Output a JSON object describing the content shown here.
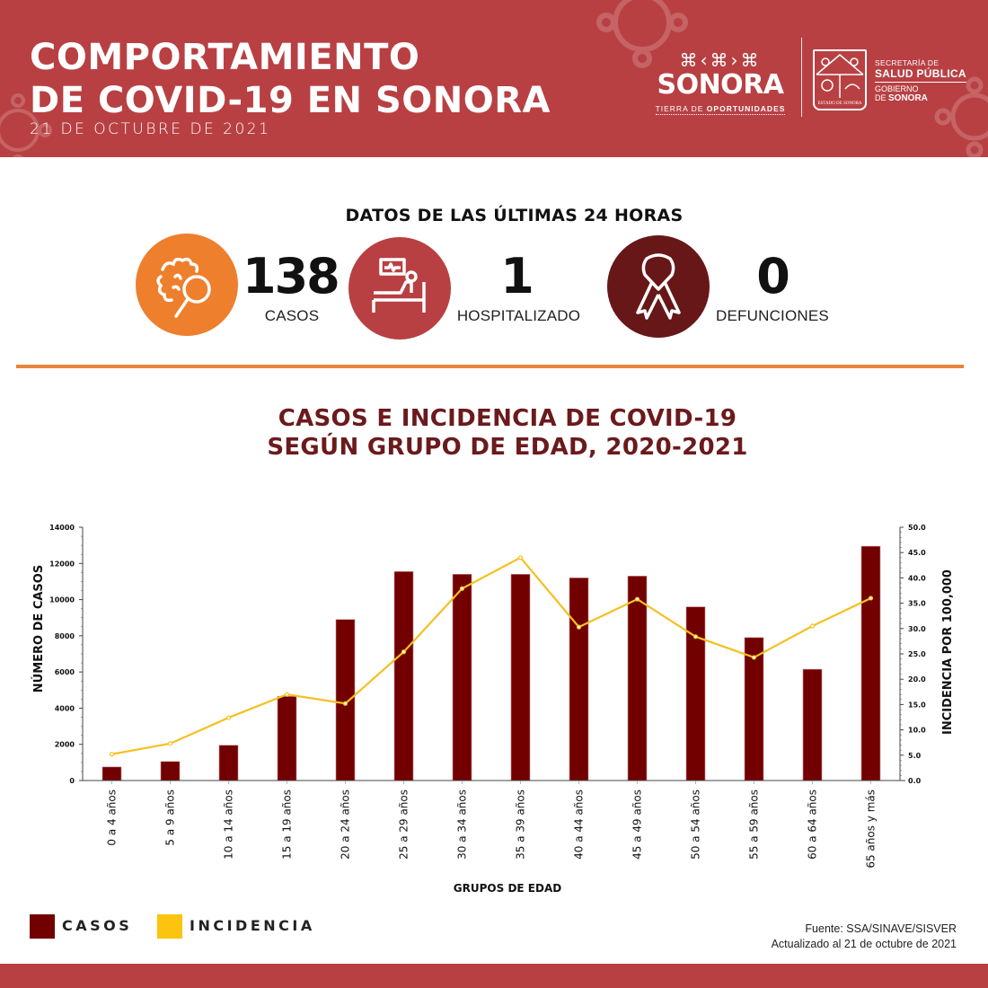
{
  "header": {
    "title_line1": "COMPORTAMIENTO",
    "title_line2": "DE COVID-19 EN SONORA",
    "date": "21 DE OCTUBRE DE 2021",
    "logo_sonora": {
      "pattern": "⌘‹⌘›⌘",
      "word": "SONORA",
      "tagline_prefix": "TIERRA DE ",
      "tagline_bold": "OPORTUNIDADES"
    },
    "coat_of_arms_label": "ESTADO DE SONORA",
    "ssp": {
      "line1": "SECRETARÍA DE",
      "line2": "SALUD PÚBLICA",
      "line3": "GOBIERNO",
      "line4_prefix": "DE ",
      "line4_bold": "SONORA"
    },
    "bg_color": "#b84043"
  },
  "stats": {
    "title": "DATOS DE LAS ÚLTIMAS 24 HORAS",
    "items": [
      {
        "icon": "virus-magnifier-icon",
        "value": "138",
        "label": "CASOS",
        "color": "#ee7f2d"
      },
      {
        "icon": "hospital-bed-icon",
        "value": "1",
        "label": "HOSPITALIZADO",
        "color": "#b84043"
      },
      {
        "icon": "ribbon-icon",
        "value": "0",
        "label": "DEFUNCIONES",
        "color": "#681718"
      }
    ]
  },
  "chart_title": {
    "line1": "CASOS E INCIDENCIA DE COVID-19",
    "line2": "SEGÚN GRUPO DE EDAD, 2020-2021"
  },
  "chart_data": {
    "type": "bar",
    "title": "CASOS E INCIDENCIA DE COVID-19 SEGÚN GRUPO DE EDAD, 2020-2021",
    "xlabel": "GRUPOS DE EDAD",
    "ylabel": "NÚMERO DE CASOS",
    "y2label": "INCIDENCIA POR 100,000",
    "categories": [
      "0 a 4 años",
      "5 a 9 años",
      "10 a 14 años",
      "15 a 19 años",
      "20 a 24 años",
      "25 a 29 años",
      "30 a 34 años",
      "35 a 39 años",
      "40 a 44 años",
      "45 a 49 años",
      "50 a 54 años",
      "55 a 59 años",
      "60 a 64 años",
      "65 años y más"
    ],
    "series": [
      {
        "name": "CASOS",
        "type": "bar",
        "axis": "left",
        "color": "#720000",
        "values": [
          750,
          1050,
          1950,
          4650,
          8900,
          11550,
          11400,
          11400,
          11200,
          11300,
          9600,
          7900,
          6150,
          12950
        ]
      },
      {
        "name": "INCIDENCIA",
        "type": "line",
        "axis": "right",
        "color": "#f5c021",
        "values": [
          5.2,
          7.3,
          12.4,
          17.0,
          15.2,
          25.4,
          37.9,
          44.0,
          30.3,
          35.8,
          28.4,
          24.3,
          30.5,
          36.0
        ]
      }
    ],
    "ylim": [
      0,
      14000
    ],
    "yticks": [
      "0",
      "2000",
      "4000",
      "6000",
      "8000",
      "10000",
      "12000",
      "14000"
    ],
    "y2lim": [
      0,
      50
    ],
    "y2ticks": [
      "0.0",
      "5.0",
      "10.0",
      "15.0",
      "20.0",
      "25.0",
      "30.0",
      "35.0",
      "40.0",
      "45.0",
      "50.0"
    ],
    "grid": false,
    "legend": "bottom-left"
  },
  "legend": [
    {
      "label": "CASOS",
      "color": "#720000"
    },
    {
      "label": "INCIDENCIA",
      "color": "#fcc30f"
    }
  ],
  "source": {
    "line1": "Fuente: SSA/SINAVE/SISVER",
    "line2": "Actualizado al 21 de octubre de 2021"
  }
}
